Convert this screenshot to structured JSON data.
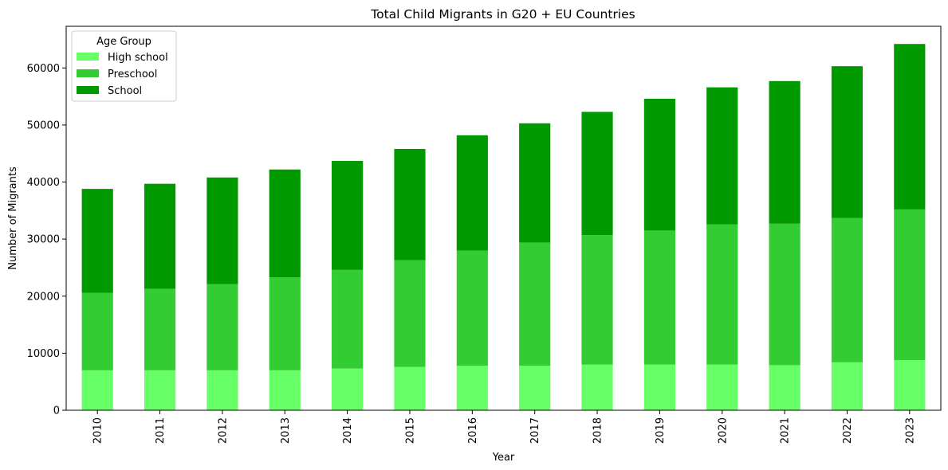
{
  "chart_data": {
    "type": "bar",
    "stacked": true,
    "title": "Total Child Migrants in G20 + EU Countries",
    "xlabel": "Year",
    "ylabel": "Number of Migrants",
    "categories": [
      "2010",
      "2011",
      "2012",
      "2013",
      "2014",
      "2015",
      "2016",
      "2017",
      "2018",
      "2019",
      "2020",
      "2021",
      "2022",
      "2023"
    ],
    "series": [
      {
        "name": "High school",
        "color": "#66ff66",
        "values": [
          7000,
          7000,
          7000,
          7000,
          7300,
          7600,
          7800,
          7800,
          8000,
          8000,
          8000,
          7900,
          8400,
          8800
        ]
      },
      {
        "name": "Preschool",
        "color": "#33cc33",
        "values": [
          13600,
          14300,
          15100,
          16300,
          17300,
          18700,
          20200,
          21600,
          22700,
          23500,
          24600,
          24800,
          25300,
          26400
        ]
      },
      {
        "name": "School",
        "color": "#009900",
        "values": [
          18200,
          18400,
          18700,
          18900,
          19100,
          19500,
          20200,
          20900,
          21600,
          23100,
          24000,
          25000,
          26600,
          29000
        ]
      }
    ],
    "ylim": [
      0,
      67300
    ],
    "yticks": [
      0,
      10000,
      20000,
      30000,
      40000,
      50000,
      60000
    ],
    "grid": false,
    "legend": {
      "title": "Age Group",
      "position": "top-left"
    }
  }
}
